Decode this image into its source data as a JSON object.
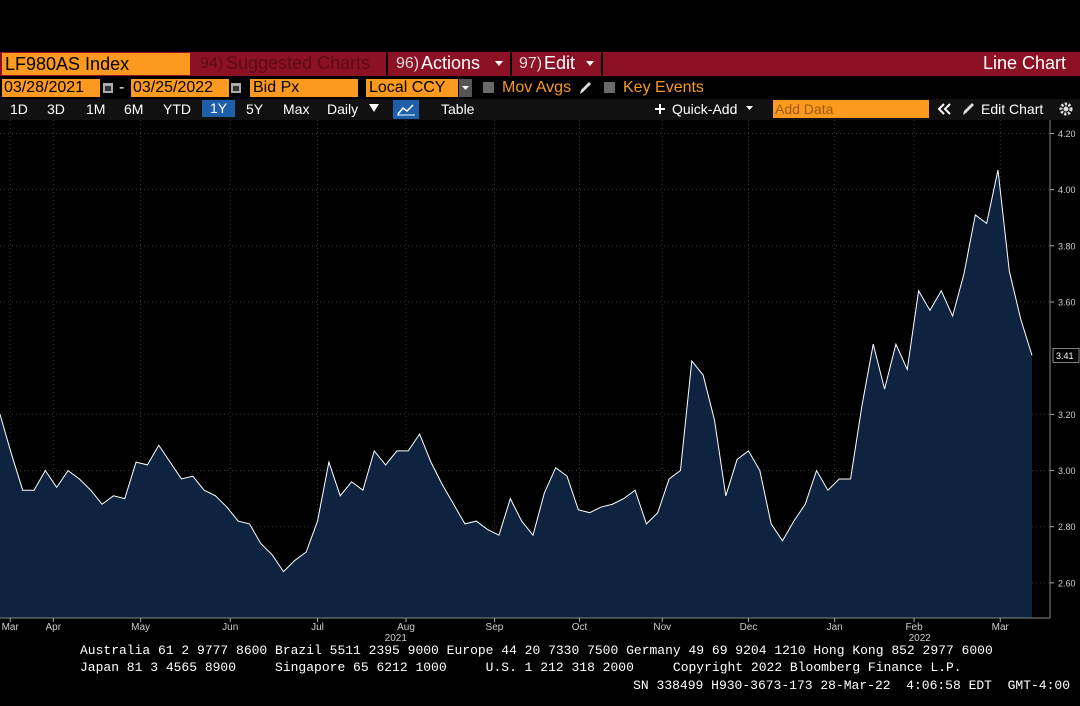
{
  "toolbar": {
    "security": "LF980AS Index",
    "menu": [
      {
        "number": "94)",
        "label": "Suggested Charts"
      },
      {
        "number": "96)",
        "label": "Actions"
      },
      {
        "number": "97)",
        "label": "Edit"
      }
    ],
    "mode": "Line Chart"
  },
  "controls": {
    "start_date": "03/28/2021",
    "separator": "-",
    "end_date": "03/25/2022",
    "field": "Bid Px",
    "currency": "Local CCY",
    "options": [
      "Mov Avgs",
      "Key Events"
    ]
  },
  "periods": [
    {
      "label": "1D"
    },
    {
      "label": "3D"
    },
    {
      "label": "1M"
    },
    {
      "label": "6M"
    },
    {
      "label": "YTD"
    },
    {
      "label": "1Y",
      "selected": true
    },
    {
      "label": "5Y"
    },
    {
      "label": "Max"
    }
  ],
  "frequency": "Daily",
  "view": "Table",
  "quick_add": "Quick-Add",
  "add_data": "Add Data",
  "edit_chart": "Edit Chart",
  "chart_data": {
    "type": "line",
    "series": [
      {
        "color": "#ffffff",
        "fill": "#0d2340",
        "values": [
          3.2,
          3.06,
          2.93,
          2.93,
          3.0,
          2.94,
          3.0,
          2.97,
          2.93,
          2.88,
          2.91,
          2.9,
          3.03,
          3.02,
          3.09,
          3.03,
          2.97,
          2.98,
          2.93,
          2.91,
          2.87,
          2.82,
          2.81,
          2.74,
          2.7,
          2.64,
          2.68,
          2.71,
          2.82,
          3.03,
          2.91,
          2.96,
          2.93,
          3.07,
          3.02,
          3.07,
          3.07,
          3.13,
          3.03,
          2.95,
          2.88,
          2.81,
          2.82,
          2.79,
          2.77,
          2.9,
          2.82,
          2.77,
          2.92,
          3.01,
          2.98,
          2.86,
          2.85,
          2.87,
          2.88,
          2.9,
          2.93,
          2.81,
          2.85,
          2.97,
          3.0,
          3.39,
          3.34,
          3.18,
          2.91,
          3.04,
          3.07,
          3.0,
          2.81,
          2.75,
          2.82,
          2.88,
          3.0,
          2.93,
          2.97,
          2.97,
          3.23,
          3.45,
          3.29,
          3.45,
          3.36,
          3.64,
          3.57,
          3.64,
          3.55,
          3.7,
          3.91,
          3.88,
          4.07,
          3.71,
          3.54,
          3.41
        ]
      }
    ],
    "xlim": [
      0,
      91
    ],
    "xticks": [
      {
        "value": 0.9,
        "label": "Mar"
      },
      {
        "value": 4.7,
        "label": "Apr"
      },
      {
        "value": 12.4,
        "label": "May"
      },
      {
        "value": 20.3,
        "label": "Jun"
      },
      {
        "value": 28.0,
        "label": "Jul"
      },
      {
        "value": 35.8,
        "label": "Aug"
      },
      {
        "value": 43.6,
        "label": "Sep"
      },
      {
        "value": 51.1,
        "label": "Oct"
      },
      {
        "value": 58.4,
        "label": "Nov"
      },
      {
        "value": 66.0,
        "label": "Dec"
      },
      {
        "value": 73.6,
        "label": "Jan"
      },
      {
        "value": 80.6,
        "label": "Feb"
      },
      {
        "value": 88.2,
        "label": "Mar"
      }
    ],
    "year_labels": [
      {
        "value": 34.9,
        "label": "2021"
      },
      {
        "value": 81.1,
        "label": "2022"
      }
    ],
    "ylim": [
      2.475,
      4.248
    ],
    "yticks": [
      {
        "value": 2.6,
        "label": "2.60"
      },
      {
        "value": 2.8,
        "label": "2.80"
      },
      {
        "value": 3.0,
        "label": "3.00"
      },
      {
        "value": 3.2,
        "label": "3.20"
      },
      {
        "value": 3.6,
        "label": "3.60"
      },
      {
        "value": 3.8,
        "label": "3.80"
      },
      {
        "value": 4.0,
        "label": "4.00"
      },
      {
        "value": 4.2,
        "label": "4.20"
      }
    ],
    "grid": true,
    "last_value_label": true
  },
  "footer": [
    "Australia 61 2 9777 8600 Brazil 5511 2395 9000 Europe 44 20 7330 7500 Germany 49 69 9204 1210 Hong Kong 852 2977 6000",
    "Japan 81 3 4565 8900     Singapore 65 6212 1000     U.S. 1 212 318 2000     Copyright 2022 Bloomberg Finance L.P.",
    "SN 338499 H930-3673-173 28-Mar-22  4:06:58 EDT  GMT-4:00"
  ]
}
